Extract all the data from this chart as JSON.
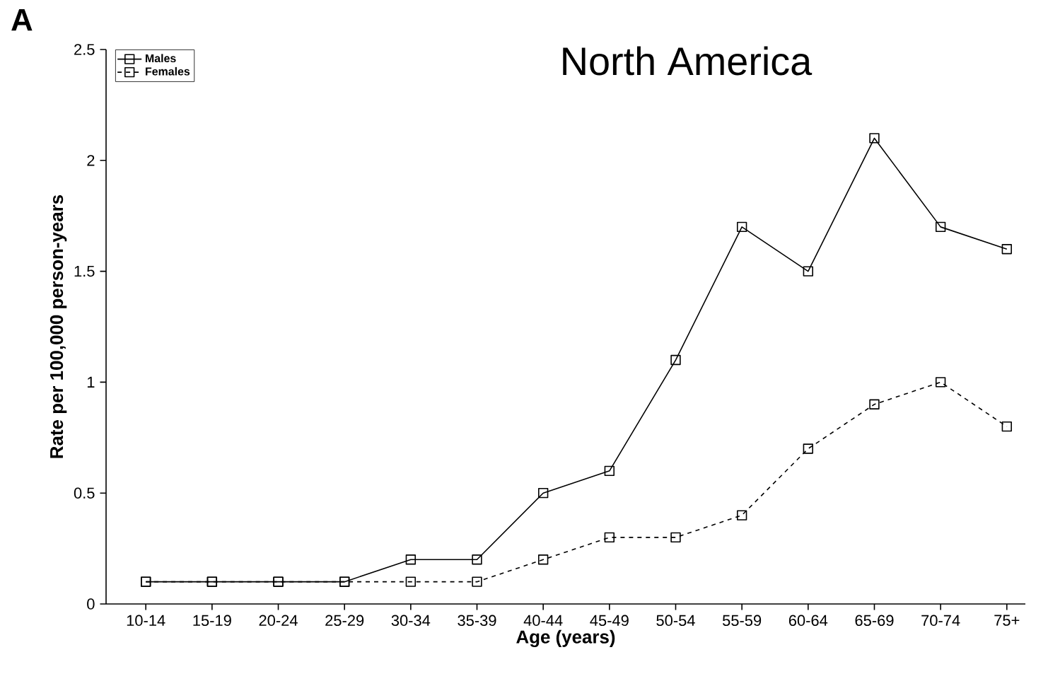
{
  "chart_data": {
    "type": "line",
    "title": "North America",
    "xlabel": "Age (years)",
    "ylabel": "Rate per 100,000 person-years",
    "annotations": [
      "A"
    ],
    "categories": [
      "10-14",
      "15-19",
      "20-24",
      "25-29",
      "30-34",
      "35-39",
      "40-44",
      "45-49",
      "50-54",
      "55-59",
      "60-64",
      "65-69",
      "70-74",
      "75+"
    ],
    "series": [
      {
        "name": "Males",
        "color": "#000000",
        "line_style": "solid",
        "values": [
          0.1,
          0.1,
          0.1,
          0.1,
          0.2,
          0.2,
          0.5,
          0.6,
          1.1,
          1.7,
          1.5,
          2.1,
          1.7,
          1.6
        ]
      },
      {
        "name": "Females",
        "color": "#000000",
        "line_style": "dashed",
        "values": [
          0.1,
          0.1,
          0.1,
          0.1,
          0.1,
          0.1,
          0.2,
          0.3,
          0.3,
          0.4,
          0.7,
          0.9,
          1.0,
          0.8
        ]
      }
    ],
    "marker": "square",
    "legend": "top left",
    "ylim": [
      0,
      2.5
    ],
    "yticks": [
      0,
      0.5,
      1,
      1.5,
      2,
      2.5
    ]
  }
}
